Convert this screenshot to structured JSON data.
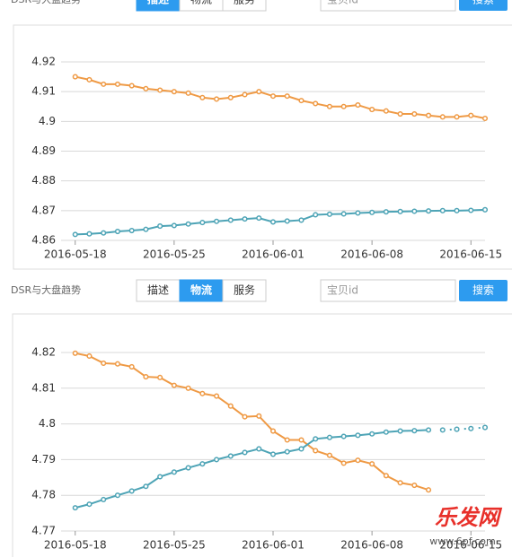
{
  "toolbars": [
    {
      "title": "DSR与大盘趋势",
      "tabs": [
        "描述",
        "物流",
        "服务"
      ],
      "active_tab": 0,
      "search_placeholder": "宝贝id",
      "button": "搜索"
    },
    {
      "title": "DSR与大盘趋势",
      "tabs": [
        "描述",
        "物流",
        "服务"
      ],
      "active_tab": 1,
      "search_placeholder": "宝贝id",
      "button": "搜索"
    }
  ],
  "watermark": {
    "text": "乐发网",
    "url": "www.6pf.com"
  },
  "chart_data": [
    {
      "type": "line",
      "x": [
        "2016-05-18",
        "2016-05-19",
        "2016-05-20",
        "2016-05-21",
        "2016-05-22",
        "2016-05-23",
        "2016-05-24",
        "2016-05-25",
        "2016-05-26",
        "2016-05-27",
        "2016-05-28",
        "2016-05-29",
        "2016-05-30",
        "2016-05-31",
        "2016-06-01",
        "2016-06-02",
        "2016-06-03",
        "2016-06-04",
        "2016-06-05",
        "2016-06-06",
        "2016-06-07",
        "2016-06-08",
        "2016-06-09",
        "2016-06-10",
        "2016-06-11",
        "2016-06-12",
        "2016-06-13",
        "2016-06-14",
        "2016-06-15",
        "2016-06-16"
      ],
      "xlim": [
        "2016-05-17",
        "2016-06-16"
      ],
      "xticks": [
        "2016-05-18",
        "2016-05-25",
        "2016-06-01",
        "2016-06-08",
        "2016-06-15"
      ],
      "ylim": [
        4.86,
        4.92
      ],
      "yticks": [
        4.86,
        4.87,
        4.88,
        4.89,
        4.9,
        4.91,
        4.92
      ],
      "grid": true,
      "series": [
        {
          "color": "#ef9a45",
          "values": [
            4.915,
            4.914,
            4.9125,
            4.9125,
            4.912,
            4.911,
            4.9105,
            4.91,
            4.9095,
            4.908,
            4.9075,
            4.908,
            4.909,
            4.91,
            4.9085,
            4.9085,
            4.907,
            4.906,
            4.905,
            4.905,
            4.9055,
            4.904,
            4.9035,
            4.9025,
            4.9025,
            4.902,
            4.9015,
            4.9015,
            4.902,
            4.901
          ]
        },
        {
          "color": "#4ea4b6",
          "values": [
            4.862,
            4.8622,
            4.8625,
            4.863,
            4.8633,
            4.8637,
            4.8648,
            4.865,
            4.8655,
            4.866,
            4.8664,
            4.8668,
            4.8672,
            4.8675,
            4.8662,
            4.8665,
            4.8668,
            4.8686,
            4.8688,
            4.8689,
            4.8692,
            4.8694,
            4.8696,
            4.8697,
            4.8698,
            4.8699,
            4.87,
            4.87,
            4.8701,
            4.8703
          ]
        }
      ]
    },
    {
      "type": "line",
      "x": [
        "2016-05-18",
        "2016-05-19",
        "2016-05-20",
        "2016-05-21",
        "2016-05-22",
        "2016-05-23",
        "2016-05-24",
        "2016-05-25",
        "2016-05-26",
        "2016-05-27",
        "2016-05-28",
        "2016-05-29",
        "2016-05-30",
        "2016-05-31",
        "2016-06-01",
        "2016-06-02",
        "2016-06-03",
        "2016-06-04",
        "2016-06-05",
        "2016-06-06",
        "2016-06-07",
        "2016-06-08",
        "2016-06-09",
        "2016-06-10",
        "2016-06-11",
        "2016-06-12",
        "2016-06-13",
        "2016-06-14",
        "2016-06-15",
        "2016-06-16"
      ],
      "xlim": [
        "2016-05-17",
        "2016-06-16"
      ],
      "xticks": [
        "2016-05-18",
        "2016-05-25",
        "2016-06-01",
        "2016-06-08",
        "2016-06-15"
      ],
      "ylim": [
        4.77,
        4.82
      ],
      "yticks": [
        4.77,
        4.78,
        4.79,
        4.8,
        4.81,
        4.82
      ],
      "grid": true,
      "series": [
        {
          "color": "#ef9a45",
          "values": [
            4.8198,
            4.819,
            4.817,
            4.8168,
            4.816,
            4.8132,
            4.813,
            4.8108,
            4.81,
            4.8085,
            4.8078,
            4.805,
            4.802,
            4.8022,
            4.798,
            4.7955,
            4.7955,
            4.7925,
            4.7912,
            4.789,
            4.7898,
            4.7888,
            4.7855,
            4.7835,
            4.7828,
            4.7815,
            null,
            null,
            null,
            null
          ]
        },
        {
          "color": "#4ea4b6",
          "values": [
            4.7765,
            4.7775,
            4.7788,
            4.78,
            4.7812,
            4.7825,
            4.7852,
            4.7865,
            4.7877,
            4.7888,
            4.79,
            4.791,
            4.792,
            4.793,
            4.7915,
            4.7922,
            4.793,
            4.7958,
            4.7962,
            4.7965,
            4.7968,
            4.7972,
            4.7977,
            4.798,
            4.7981,
            4.7983,
            null,
            null,
            null,
            null
          ]
        },
        {
          "color": "#4ea4b6",
          "dashed": true,
          "values": [
            null,
            null,
            null,
            null,
            null,
            null,
            null,
            null,
            null,
            null,
            null,
            null,
            null,
            null,
            null,
            null,
            null,
            null,
            null,
            null,
            null,
            null,
            null,
            null,
            null,
            null,
            4.7983,
            4.7985,
            4.7987,
            4.799
          ]
        }
      ]
    }
  ]
}
